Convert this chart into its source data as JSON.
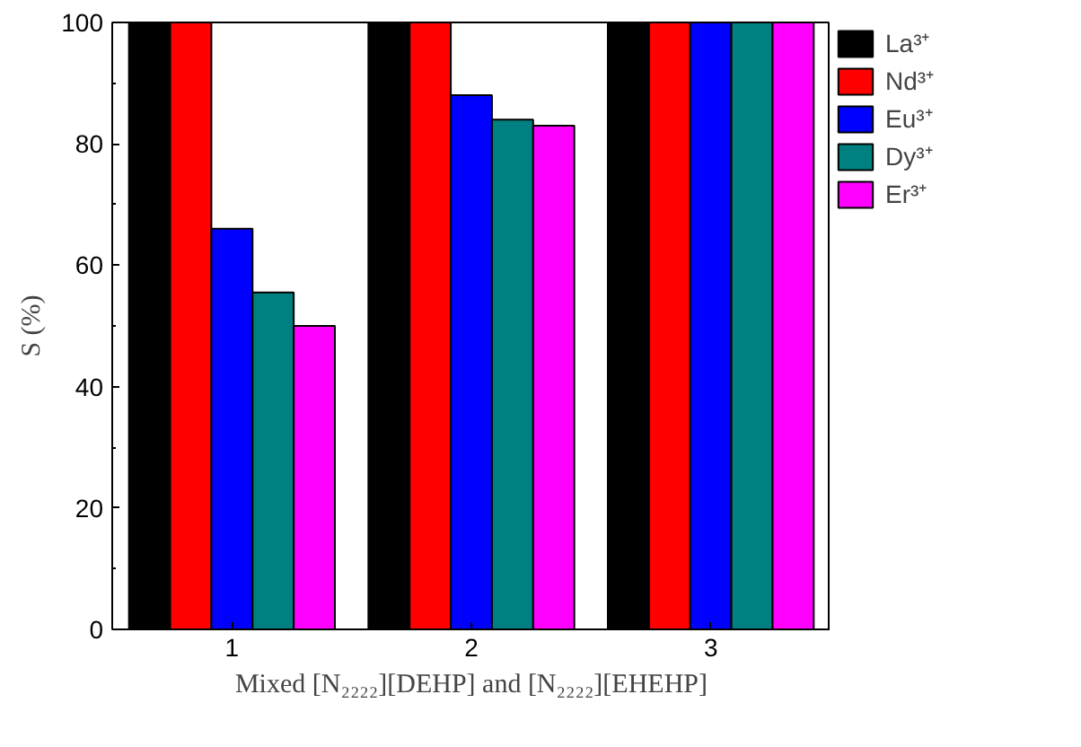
{
  "chart_data": {
    "type": "bar",
    "xlabel": "Mixed [N₂₂₂₂][DEHP] and [N₂₂₂₂][EHEHP]",
    "ylabel": "S (%)",
    "categories": [
      "1",
      "2",
      "3"
    ],
    "series": [
      {
        "name": "La³⁺",
        "color": "#000000",
        "values": [
          100,
          100,
          100
        ]
      },
      {
        "name": "Nd³⁺",
        "color": "#ff0000",
        "values": [
          100,
          100,
          100
        ]
      },
      {
        "name": "Eu³⁺",
        "color": "#0000ff",
        "values": [
          66,
          88,
          100
        ]
      },
      {
        "name": "Dy³⁺",
        "color": "#008080",
        "values": [
          55.5,
          84,
          100
        ]
      },
      {
        "name": "Er³⁺",
        "color": "#ff00ff",
        "values": [
          50,
          83,
          100
        ]
      }
    ],
    "ylim": [
      0,
      100
    ],
    "yticks": [
      0,
      20,
      40,
      60,
      80,
      100
    ],
    "legend": "top right"
  }
}
